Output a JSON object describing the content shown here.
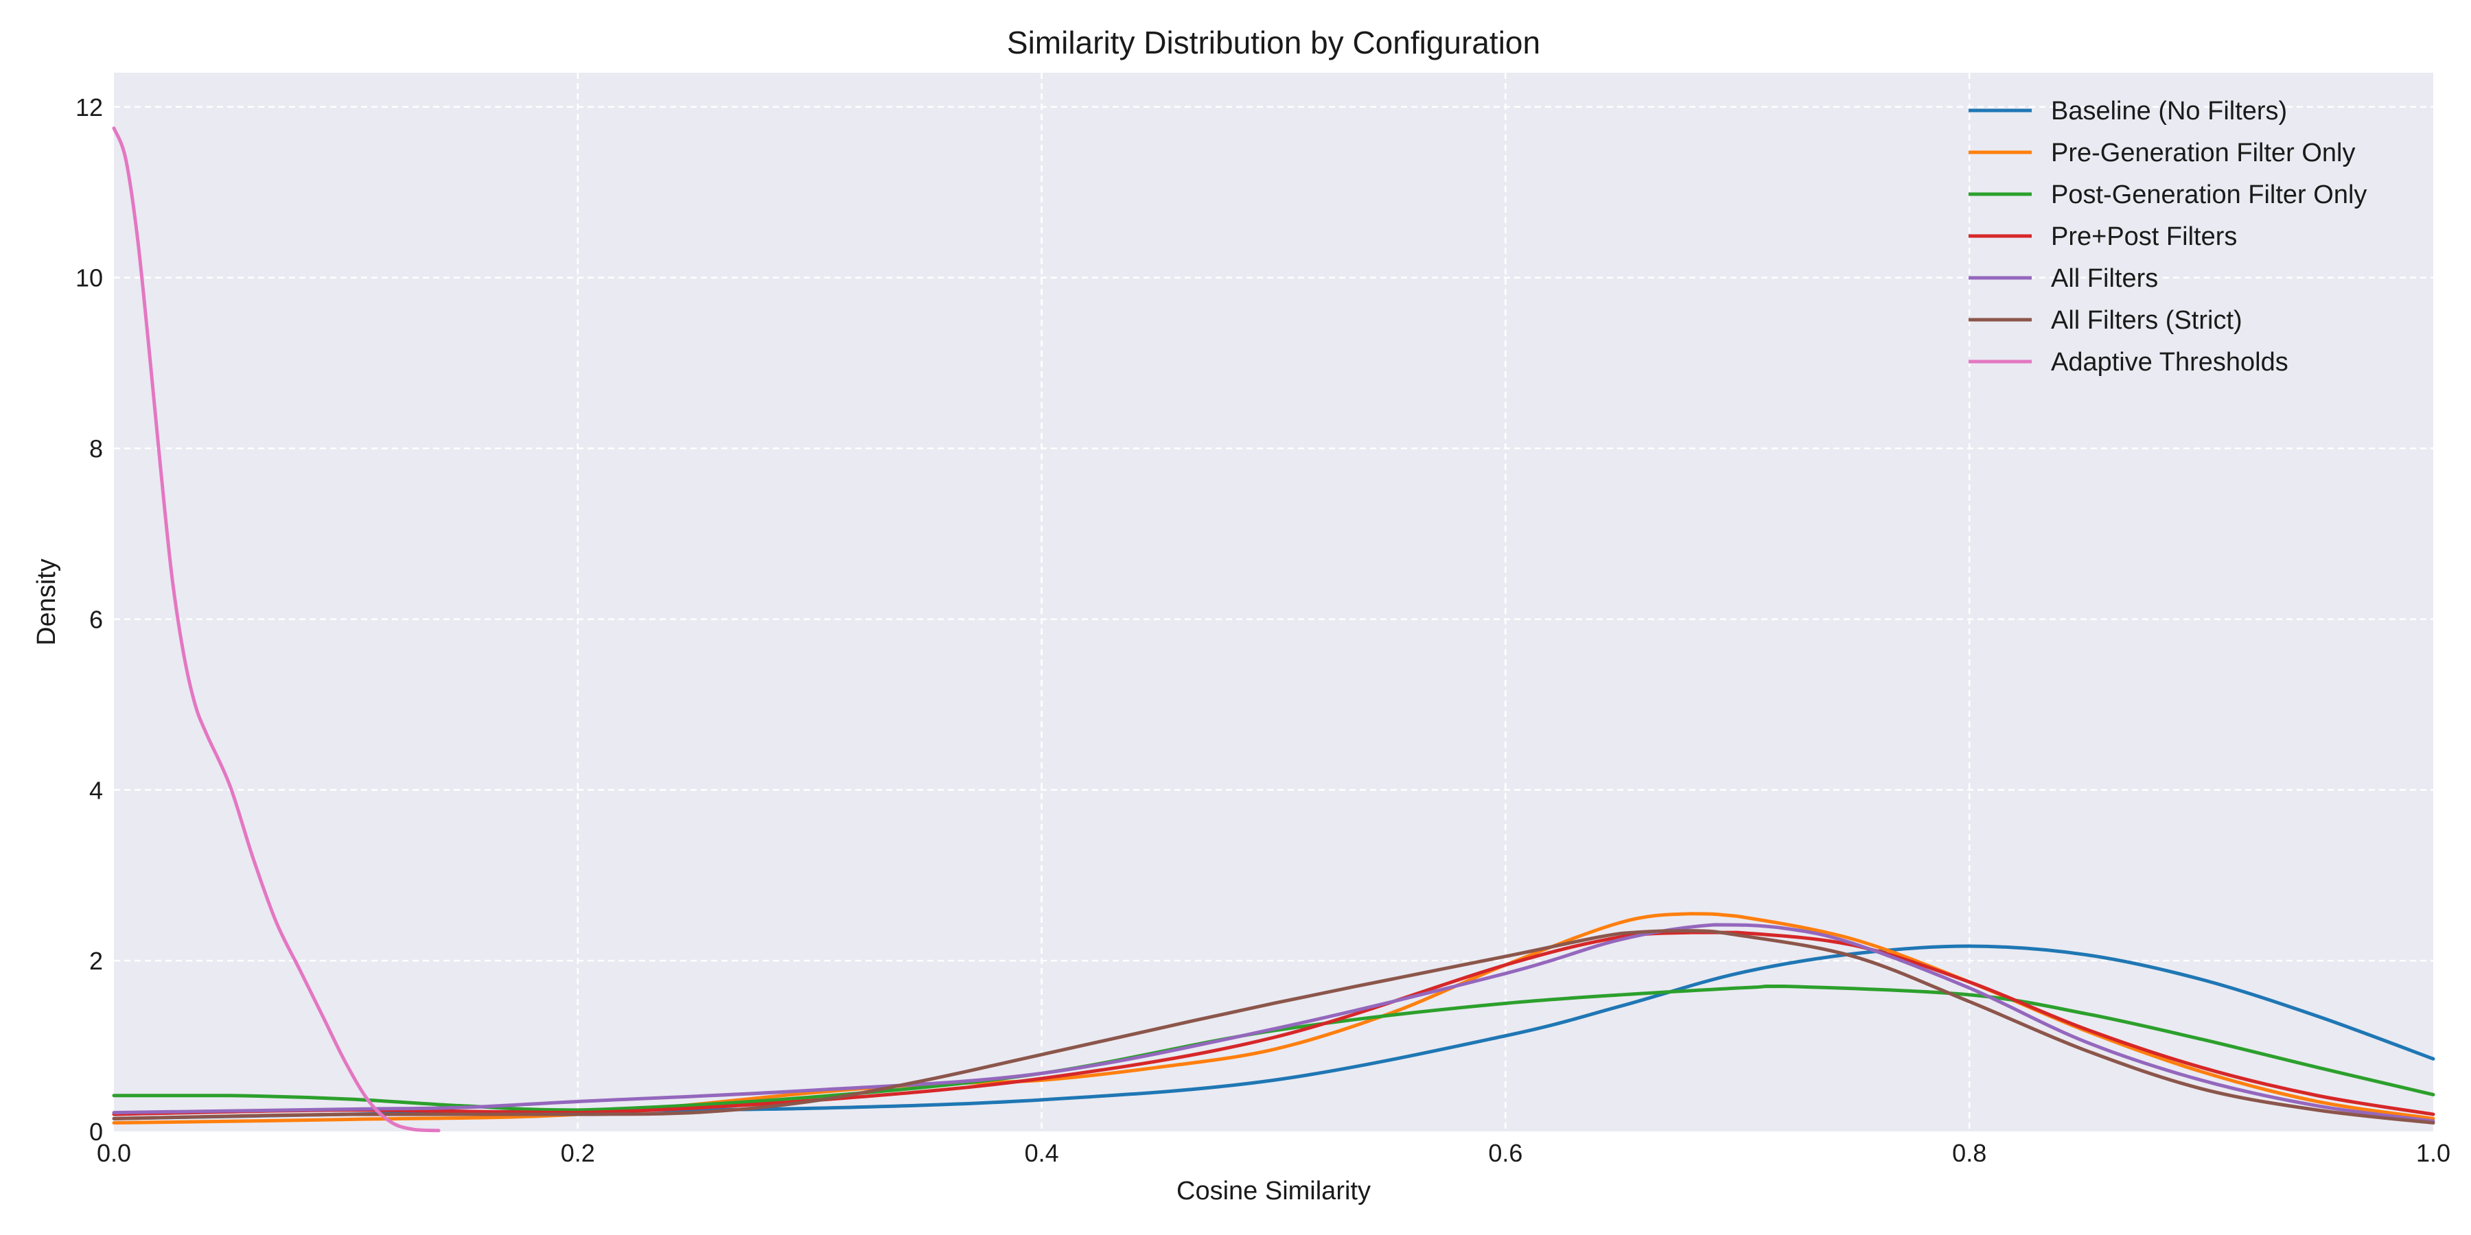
{
  "chart_data": {
    "type": "line",
    "title": "Similarity Distribution by Configuration",
    "xlabel": "Cosine Similarity",
    "ylabel": "Density",
    "xlim": [
      0.0,
      1.0
    ],
    "ylim": [
      0,
      12.4
    ],
    "xticks": [
      0.0,
      0.2,
      0.4,
      0.6,
      0.8,
      1.0
    ],
    "xtick_labels": [
      "0.0",
      "0.2",
      "0.4",
      "0.6",
      "0.8",
      "1.0"
    ],
    "yticks": [
      0,
      2,
      4,
      6,
      8,
      10,
      12
    ],
    "ytick_labels": [
      "0",
      "2",
      "4",
      "6",
      "8",
      "10",
      "12"
    ],
    "grid": true,
    "legend_position": "top-right",
    "background": "#eaeaf2",
    "series": [
      {
        "name": "Baseline (No Filters)",
        "color": "#1f77b4",
        "x": [
          0.0,
          0.1,
          0.2,
          0.3,
          0.4,
          0.5,
          0.6,
          0.65,
          0.7,
          0.75,
          0.8,
          0.85,
          0.9,
          0.95,
          1.0
        ],
        "y": [
          0.15,
          0.2,
          0.24,
          0.27,
          0.37,
          0.6,
          1.12,
          1.47,
          1.85,
          2.08,
          2.17,
          2.07,
          1.78,
          1.35,
          0.85
        ]
      },
      {
        "name": "Pre-Generation Filter Only",
        "color": "#ff7f0e",
        "x": [
          0.0,
          0.1,
          0.2,
          0.3,
          0.35,
          0.4,
          0.45,
          0.5,
          0.55,
          0.6,
          0.65,
          0.68,
          0.7,
          0.75,
          0.8,
          0.85,
          0.9,
          0.95,
          1.0
        ],
        "y": [
          0.1,
          0.14,
          0.2,
          0.45,
          0.55,
          0.6,
          0.75,
          0.96,
          1.38,
          1.95,
          2.45,
          2.55,
          2.52,
          2.25,
          1.75,
          1.18,
          0.7,
          0.35,
          0.15
        ]
      },
      {
        "name": "Post-Generation Filter Only",
        "color": "#2ca02c",
        "x": [
          0.0,
          0.05,
          0.1,
          0.15,
          0.2,
          0.3,
          0.4,
          0.5,
          0.6,
          0.7,
          0.72,
          0.8,
          0.85,
          0.9,
          0.95,
          1.0
        ],
        "y": [
          0.42,
          0.42,
          0.38,
          0.3,
          0.25,
          0.4,
          0.68,
          1.18,
          1.5,
          1.68,
          1.7,
          1.6,
          1.38,
          1.08,
          0.75,
          0.43
        ]
      },
      {
        "name": "Pre+Post Filters",
        "color": "#d62728",
        "x": [
          0.0,
          0.1,
          0.2,
          0.3,
          0.4,
          0.5,
          0.6,
          0.65,
          0.68,
          0.7,
          0.75,
          0.8,
          0.85,
          0.9,
          0.95,
          1.0
        ],
        "y": [
          0.2,
          0.25,
          0.22,
          0.36,
          0.62,
          1.1,
          1.95,
          2.28,
          2.33,
          2.33,
          2.18,
          1.75,
          1.2,
          0.75,
          0.42,
          0.2
        ]
      },
      {
        "name": "All Filters",
        "color": "#9467bd",
        "x": [
          0.0,
          0.1,
          0.15,
          0.2,
          0.3,
          0.4,
          0.5,
          0.6,
          0.65,
          0.69,
          0.72,
          0.75,
          0.8,
          0.85,
          0.9,
          0.95,
          1.0
        ],
        "y": [
          0.22,
          0.26,
          0.28,
          0.35,
          0.48,
          0.68,
          1.2,
          1.85,
          2.25,
          2.42,
          2.38,
          2.2,
          1.68,
          1.05,
          0.6,
          0.3,
          0.12
        ]
      },
      {
        "name": "All Filters (Strict)",
        "color": "#8c564b",
        "x": [
          0.0,
          0.1,
          0.2,
          0.25,
          0.3,
          0.35,
          0.4,
          0.5,
          0.6,
          0.65,
          0.68,
          0.7,
          0.75,
          0.8,
          0.85,
          0.9,
          0.95,
          1.0
        ],
        "y": [
          0.15,
          0.2,
          0.2,
          0.22,
          0.35,
          0.6,
          0.9,
          1.5,
          2.05,
          2.32,
          2.35,
          2.3,
          2.05,
          1.52,
          0.95,
          0.5,
          0.25,
          0.1
        ]
      },
      {
        "name": "Adaptive Thresholds",
        "color": "#e377c2",
        "x": [
          0.0,
          0.005,
          0.01,
          0.015,
          0.02,
          0.025,
          0.03,
          0.035,
          0.04,
          0.05,
          0.06,
          0.07,
          0.08,
          0.09,
          0.1,
          0.11,
          0.12,
          0.13,
          0.14
        ],
        "y": [
          11.75,
          11.4,
          10.5,
          9.2,
          7.8,
          6.5,
          5.6,
          5.0,
          4.65,
          4.05,
          3.2,
          2.45,
          1.9,
          1.35,
          0.8,
          0.35,
          0.1,
          0.02,
          0.01
        ]
      }
    ]
  }
}
